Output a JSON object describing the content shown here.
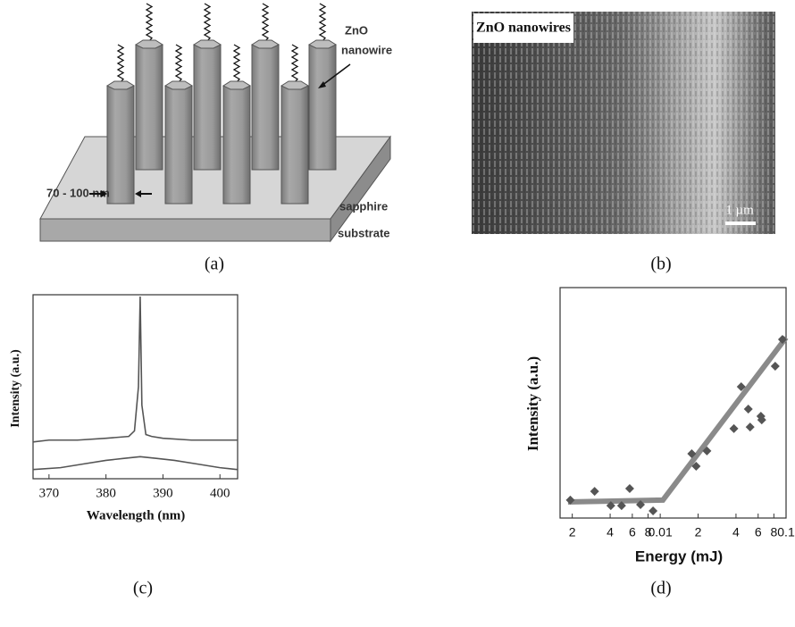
{
  "panels": [
    {
      "label": "(a)",
      "annotations": [
        "ZnO",
        "nanowire",
        "70 - 100 nm",
        "sapphire",
        "substrate"
      ]
    },
    {
      "label": "(b)",
      "annotations": [
        "ZnO nanowires",
        "1 µm"
      ]
    },
    {
      "label": "(c)"
    },
    {
      "label": "(d)"
    }
  ],
  "chart_data": [
    {
      "type": "line",
      "xlabel": "Wavelength (nm)",
      "ylabel": "Intensity (a.u.)",
      "xlim": [
        367.2,
        403.1
      ],
      "xticks": [
        370,
        380,
        390,
        400
      ],
      "ylim": [
        0,
        10
      ],
      "series": [
        {
          "color": "#555555",
          "x": [
            367.2,
            370,
            375,
            380,
            384,
            385,
            385.7,
            386,
            386.3,
            387,
            388,
            390,
            395,
            400,
            403
          ],
          "values": [
            2.0,
            2.1,
            2.1,
            2.2,
            2.3,
            2.6,
            5,
            9.9,
            4,
            2.4,
            2.3,
            2.2,
            2.1,
            2.1,
            2.1
          ]
        },
        {
          "color": "#555555",
          "x": [
            367.2,
            372,
            376,
            380,
            383,
            386,
            389,
            392,
            396,
            400,
            403
          ],
          "values": [
            0.5,
            0.6,
            0.8,
            1.0,
            1.1,
            1.2,
            1.1,
            1.0,
            0.8,
            0.6,
            0.5
          ]
        }
      ]
    },
    {
      "type": "scatter",
      "xlabel": "Energy (mJ)",
      "ylabel": "Intensity (a.u.)",
      "xlog": true,
      "xlim": [
        0.0016,
        0.1
      ],
      "xticks": [
        {
          "value": 0.002,
          "label": "2"
        },
        {
          "value": 0.004,
          "label": "4"
        },
        {
          "value": 0.006,
          "label": "6"
        },
        {
          "value": 0.008,
          "label": "8"
        },
        0.01,
        {
          "value": 0.02,
          "label": "2"
        },
        {
          "value": 0.04,
          "label": "4"
        },
        {
          "value": 0.06,
          "label": "6"
        },
        {
          "value": 0.08,
          "label": "8"
        },
        0.1
      ],
      "ylim": [
        0,
        10
      ],
      "series": [
        {
          "kind": "marker",
          "color": "#555555",
          "x": [
            0.00193,
            0.00301,
            0.00405,
            0.00493,
            0.00572,
            0.00697,
            0.00877,
            0.0178,
            0.0193,
            0.0235,
            0.0385,
            0.044,
            0.0501,
            0.0518,
            0.0631,
            0.0641,
            0.082,
            0.0936
          ],
          "values": [
            0.78,
            1.16,
            0.54,
            0.54,
            1.28,
            0.58,
            0.31,
            2.79,
            2.25,
            2.91,
            3.88,
            5.7,
            4.73,
            3.95,
            4.42,
            4.26,
            6.59,
            7.75
          ]
        },
        {
          "kind": "line",
          "color": "#8a8a8a",
          "x": [
            0.00185,
            0.0105,
            0.1
          ],
          "values": [
            0.7,
            0.78,
            7.83
          ]
        }
      ]
    }
  ]
}
